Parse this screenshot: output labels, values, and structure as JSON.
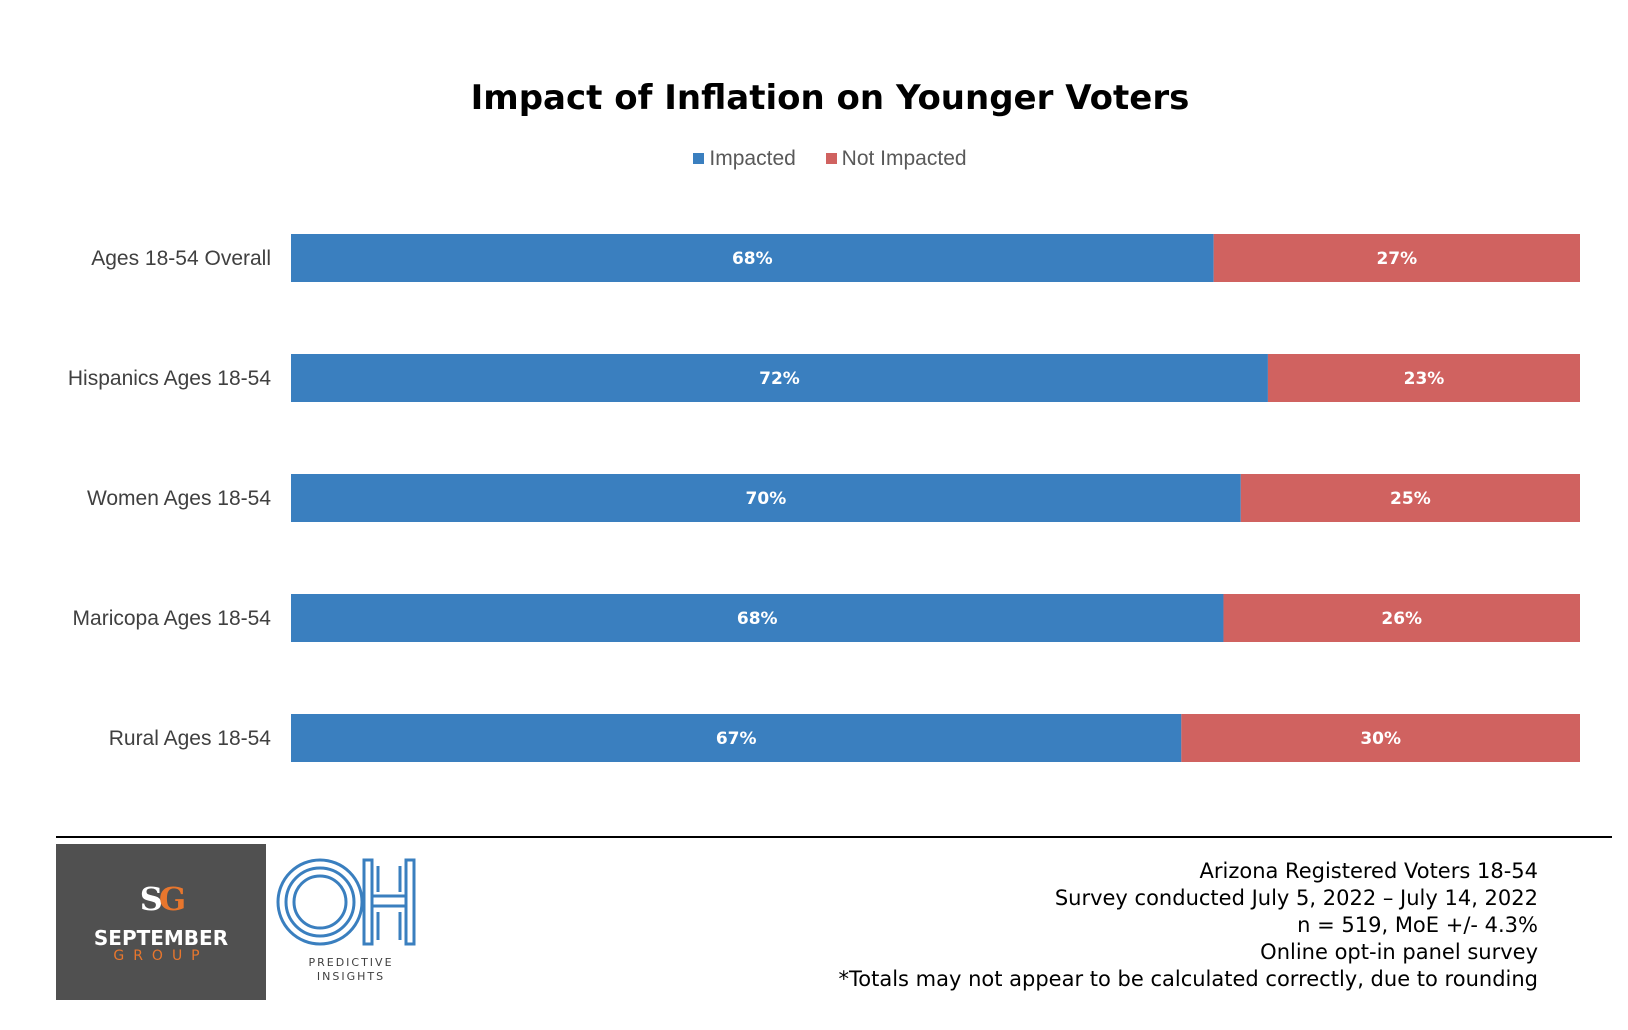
{
  "chart_data": {
    "type": "bar",
    "orientation": "horizontal",
    "stacked": true,
    "title": "Impact of Inflation on Younger Voters",
    "categories": [
      "Ages 18-54 Overall",
      "Hispanics Ages 18-54",
      "Women Ages 18-54",
      "Maricopa Ages 18-54",
      "Rural Ages 18-54"
    ],
    "series": [
      {
        "name": "Impacted",
        "values": [
          68,
          72,
          70,
          68,
          67
        ],
        "labels": [
          "68%",
          "72%",
          "70%",
          "68%",
          "67%"
        ],
        "color": "#3a7fbf"
      },
      {
        "name": "Not Impacted",
        "values": [
          27,
          23,
          25,
          26,
          30
        ],
        "labels": [
          "27%",
          "23%",
          "25%",
          "26%",
          "30%"
        ],
        "color": "#d06260"
      }
    ],
    "legend": "top-center",
    "grid": false
  },
  "logos": {
    "september": {
      "monogram_s": "S",
      "monogram_g": "G",
      "name": "SEPTEMBER",
      "sub": "GROUP"
    },
    "oh": {
      "letters": "OH",
      "line1": "PREDICTIVE",
      "line2": "INSIGHTS"
    }
  },
  "notes": [
    "Arizona Registered Voters 18-54",
    "Survey conducted July 5, 2022 – July 14, 2022",
    "n = 519, MoE +/- 4.3%",
    "Online opt-in panel survey",
    "*Totals may not appear to be calculated correctly, due to rounding"
  ]
}
